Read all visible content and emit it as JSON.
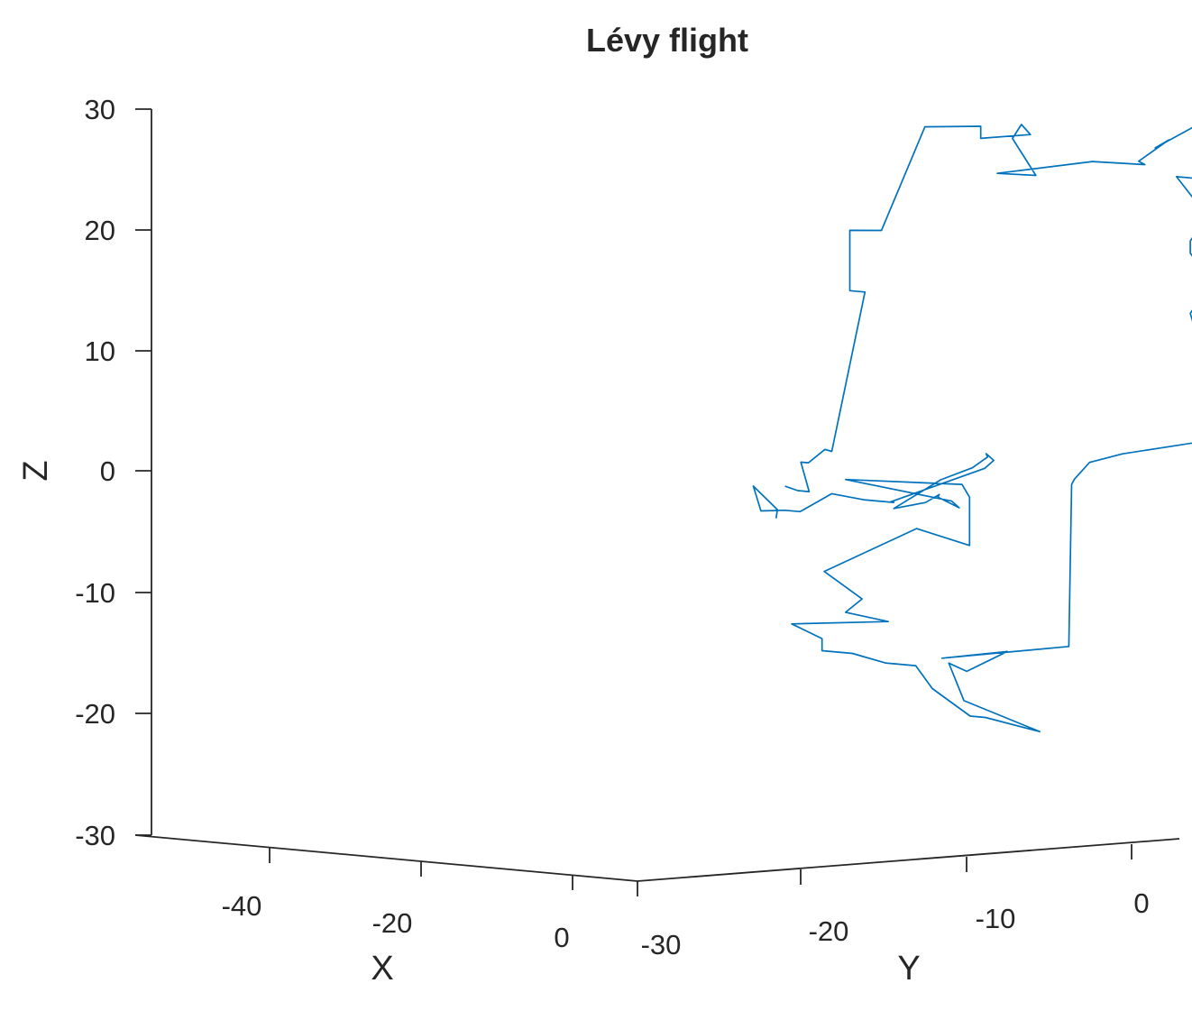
{
  "chart_data": {
    "type": "line",
    "projection": "3d",
    "title": "Lévy flight",
    "xlabel": "X",
    "ylabel": "Y",
    "zlabel": "Z",
    "xlim": [
      -50,
      0
    ],
    "ylim": [
      -30,
      0
    ],
    "zlim": [
      -30,
      30
    ],
    "xticks": [
      "-40",
      "-20",
      "0"
    ],
    "yticks": [
      "-30",
      "-20",
      "-10",
      "0"
    ],
    "zticks": [
      "30",
      "20",
      "10",
      "0",
      "-10",
      "-20",
      "-30"
    ],
    "grid": false,
    "legend": "none",
    "series": [
      {
        "color": "#0072BD",
        "x": [
          -2,
          -1.5,
          -3,
          -3,
          -4,
          -4,
          -6,
          -6,
          -4,
          -4,
          -6,
          -3,
          -6,
          -6,
          -6,
          -7,
          -8,
          -10,
          -6,
          -12,
          -8,
          -5,
          -9,
          -5,
          -10,
          -20,
          -20,
          -10,
          -14,
          -14,
          -14,
          -14,
          -18,
          -16,
          -14,
          -19,
          -16,
          -16,
          -14,
          -18,
          -22,
          -14,
          -27,
          -26,
          -28,
          -30,
          -40,
          -35,
          -33,
          -28,
          -28,
          -24,
          -24,
          -20,
          -20,
          -16,
          -20,
          -10,
          -10,
          -5,
          -15,
          -22,
          -22,
          -21,
          -10,
          -24,
          -25,
          -20,
          -18,
          -14,
          -12,
          -16,
          -18,
          -20,
          -22,
          -23,
          -24,
          -20,
          -16,
          -12,
          -8,
          -6,
          -4,
          -2,
          -1,
          0,
          -1,
          -3
        ],
        "y": [
          -22,
          -21,
          -21,
          -21.5,
          -21.5,
          -20.5,
          -21,
          -19,
          -19,
          -19,
          -18,
          -14,
          -12,
          -12,
          -9,
          -10,
          -11,
          -10.5,
          -11,
          -8,
          -3,
          -2,
          -2,
          -1,
          -1,
          -1,
          -2,
          -2,
          -2,
          -3,
          -3,
          -2,
          -3,
          -3,
          -3,
          -3,
          -8,
          -10,
          -10,
          -12,
          -14,
          -18,
          -20,
          -22,
          -24,
          -24,
          -24,
          -25,
          -25,
          -25,
          -26,
          -26,
          -28,
          -28,
          -28,
          -28,
          -24,
          -22,
          -21,
          -21,
          -20,
          -20,
          -20,
          -20,
          -22,
          -22,
          -22,
          -21,
          -20,
          -19,
          -20,
          -19,
          -18,
          -18,
          -19,
          -19,
          -20,
          -21,
          -22,
          -20,
          -20,
          -21,
          -22,
          -22,
          -23,
          -23,
          -22,
          -23
        ],
        "z": [
          -2,
          -2.5,
          -2.5,
          0,
          0,
          1,
          1,
          14,
          14,
          19,
          19,
          27,
          27,
          26,
          26,
          27,
          26,
          23,
          23,
          24,
          23,
          23,
          25,
          24,
          26,
          24,
          22,
          22,
          19,
          17,
          16,
          14,
          13,
          13,
          11,
          1,
          0,
          -0.5,
          -2,
          -2,
          -15,
          -16,
          -14.5,
          -16,
          -15,
          -18,
          -20,
          -19,
          -19,
          -17,
          -15,
          -15,
          -14,
          -14,
          -13,
          -12,
          -12,
          -12,
          -11,
          -9,
          -5,
          -6,
          -2,
          -1,
          -1,
          -2,
          -2.5,
          -2,
          -2,
          -3,
          -3.5,
          -1,
          0,
          1,
          1.5,
          1,
          0.5,
          -1,
          -2.5,
          -3,
          -3,
          -2.5,
          -4,
          -4,
          -4,
          -2,
          -4,
          -4.5
        ]
      }
    ]
  }
}
